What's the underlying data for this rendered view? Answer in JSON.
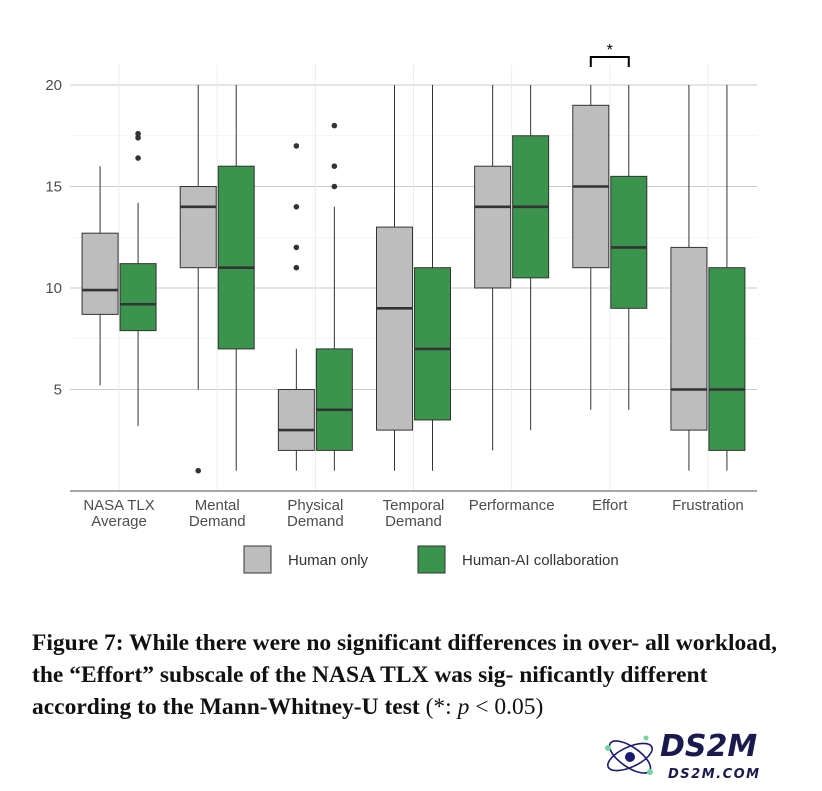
{
  "chart_data": {
    "type": "boxplot",
    "title": "",
    "xlabel": "",
    "ylabel": "",
    "ylim": [
      0,
      20
    ],
    "yticks": [
      5,
      10,
      15,
      20
    ],
    "grid": true,
    "legend_position": "bottom",
    "categories": [
      {
        "label": [
          "NASA TLX",
          "Average"
        ]
      },
      {
        "label": [
          "Mental",
          "Demand"
        ]
      },
      {
        "label": [
          "Physical",
          "Demand"
        ]
      },
      {
        "label": [
          "Temporal",
          "Demand"
        ]
      },
      {
        "label": [
          "Performance"
        ]
      },
      {
        "label": [
          "Effort"
        ]
      },
      {
        "label": [
          "Frustration"
        ]
      }
    ],
    "series": [
      {
        "name": "Human only",
        "color": "#bdbdbe",
        "boxes": [
          {
            "whisker_low": 5.2,
            "q1": 8.7,
            "median": 9.9,
            "q3": 12.7,
            "whisker_high": 16,
            "outliers": []
          },
          {
            "whisker_low": 5,
            "q1": 11,
            "median": 14,
            "q3": 15,
            "whisker_high": 20,
            "outliers": [
              1
            ]
          },
          {
            "whisker_low": 1,
            "q1": 2,
            "median": 3,
            "q3": 5,
            "whisker_high": 7,
            "outliers": [
              11,
              12,
              14,
              17
            ]
          },
          {
            "whisker_low": 1,
            "q1": 3,
            "median": 9,
            "q3": 13,
            "whisker_high": 20,
            "outliers": []
          },
          {
            "whisker_low": 2,
            "q1": 10,
            "median": 14,
            "q3": 16,
            "whisker_high": 20,
            "outliers": []
          },
          {
            "whisker_low": 4,
            "q1": 11,
            "median": 15,
            "q3": 19,
            "whisker_high": 20,
            "outliers": []
          },
          {
            "whisker_low": 1,
            "q1": 3,
            "median": 5,
            "q3": 12,
            "whisker_high": 20,
            "outliers": []
          }
        ]
      },
      {
        "name": "Human-AI collaboration",
        "color": "#3b944d",
        "boxes": [
          {
            "whisker_low": 3.2,
            "q1": 7.9,
            "median": 9.2,
            "q3": 11.2,
            "whisker_high": 14.2,
            "outliers": [
              16.4,
              17.4,
              17.6
            ]
          },
          {
            "whisker_low": 1,
            "q1": 7,
            "median": 11,
            "q3": 16,
            "whisker_high": 20,
            "outliers": []
          },
          {
            "whisker_low": 1,
            "q1": 2,
            "median": 4,
            "q3": 7,
            "whisker_high": 14,
            "outliers": [
              15,
              16,
              18
            ]
          },
          {
            "whisker_low": 1,
            "q1": 3.5,
            "median": 7,
            "q3": 11,
            "whisker_high": 20,
            "outliers": []
          },
          {
            "whisker_low": 3,
            "q1": 10.5,
            "median": 14,
            "q3": 17.5,
            "whisker_high": 20,
            "outliers": []
          },
          {
            "whisker_low": 4,
            "q1": 9,
            "median": 12,
            "q3": 15.5,
            "whisker_high": 20,
            "outliers": []
          },
          {
            "whisker_low": 1,
            "q1": 2,
            "median": 5,
            "q3": 11,
            "whisker_high": 20,
            "outliers": []
          }
        ]
      }
    ],
    "annotations": [
      {
        "category_index": 5,
        "text": "*",
        "meaning": "significant difference"
      }
    ]
  },
  "caption": {
    "lead": "Figure 7: While there were no significant differences in over- all workload, the “Effort” subscale of the NASA TLX was sig- nificantly different according to the Mann-Whitney-U test",
    "paren_open": "(*: ",
    "p_symbol": "p",
    "relation": " < 0.05)"
  },
  "watermark": {
    "logo_text": "DS2M",
    "url_text": "DS2M.COM"
  }
}
